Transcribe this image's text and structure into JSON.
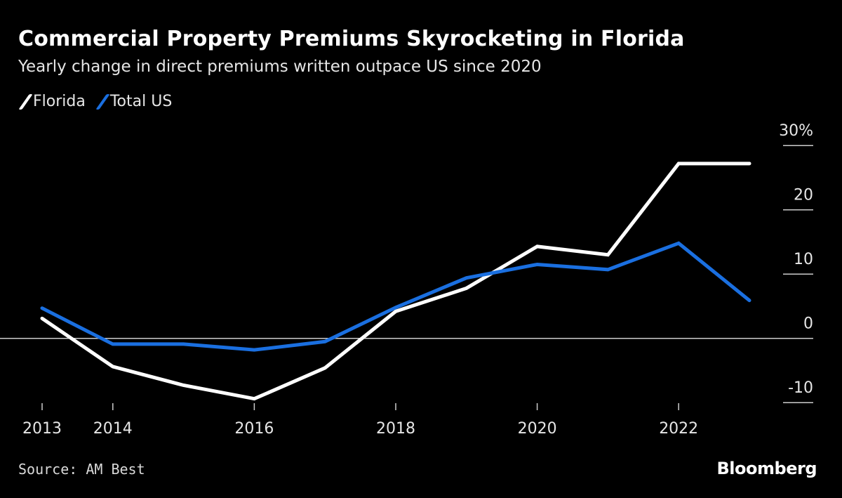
{
  "title": "Commercial Property Premiums Skyrocketing in Florida",
  "subtitle": "Yearly change in direct premiums written outpace US since 2020",
  "source": "Source: AM Best",
  "logo": "Bloomberg",
  "colors": {
    "background": "#000000",
    "florida": "#ffffff",
    "total_us": "#1a6fe0",
    "grid": "#cccccc"
  },
  "chart_data": {
    "type": "line",
    "title": "Commercial Property Premiums Skyrocketing in Florida",
    "subtitle": "Yearly change in direct premiums written outpace US since 2020",
    "x": [
      2013,
      2014,
      2015,
      2016,
      2017,
      2018,
      2019,
      2020,
      2021,
      2022,
      2023
    ],
    "x_tick_labels": [
      "2013",
      "2014",
      "2016",
      "2018",
      "2020",
      "2022"
    ],
    "x_ticks": [
      2013,
      2014,
      2016,
      2018,
      2020,
      2022
    ],
    "y_ticks": [
      30,
      20,
      10,
      0,
      -10
    ],
    "y_tick_labels": [
      "30%",
      "20",
      "10",
      "0",
      "-10"
    ],
    "ylim": [
      -10,
      30
    ],
    "y_axis_side": "right",
    "legend_placement": "top-left",
    "series": [
      {
        "name": "Florida",
        "color": "#ffffff",
        "values": [
          3.1,
          -4.4,
          -7.3,
          -9.4,
          -4.6,
          4.2,
          7.8,
          14.3,
          13.0,
          27.2,
          27.2
        ]
      },
      {
        "name": "Total US",
        "color": "#1a6fe0",
        "values": [
          4.7,
          -0.9,
          -0.9,
          -1.8,
          -0.5,
          4.8,
          9.4,
          11.5,
          10.7,
          14.8,
          5.9
        ]
      }
    ]
  }
}
